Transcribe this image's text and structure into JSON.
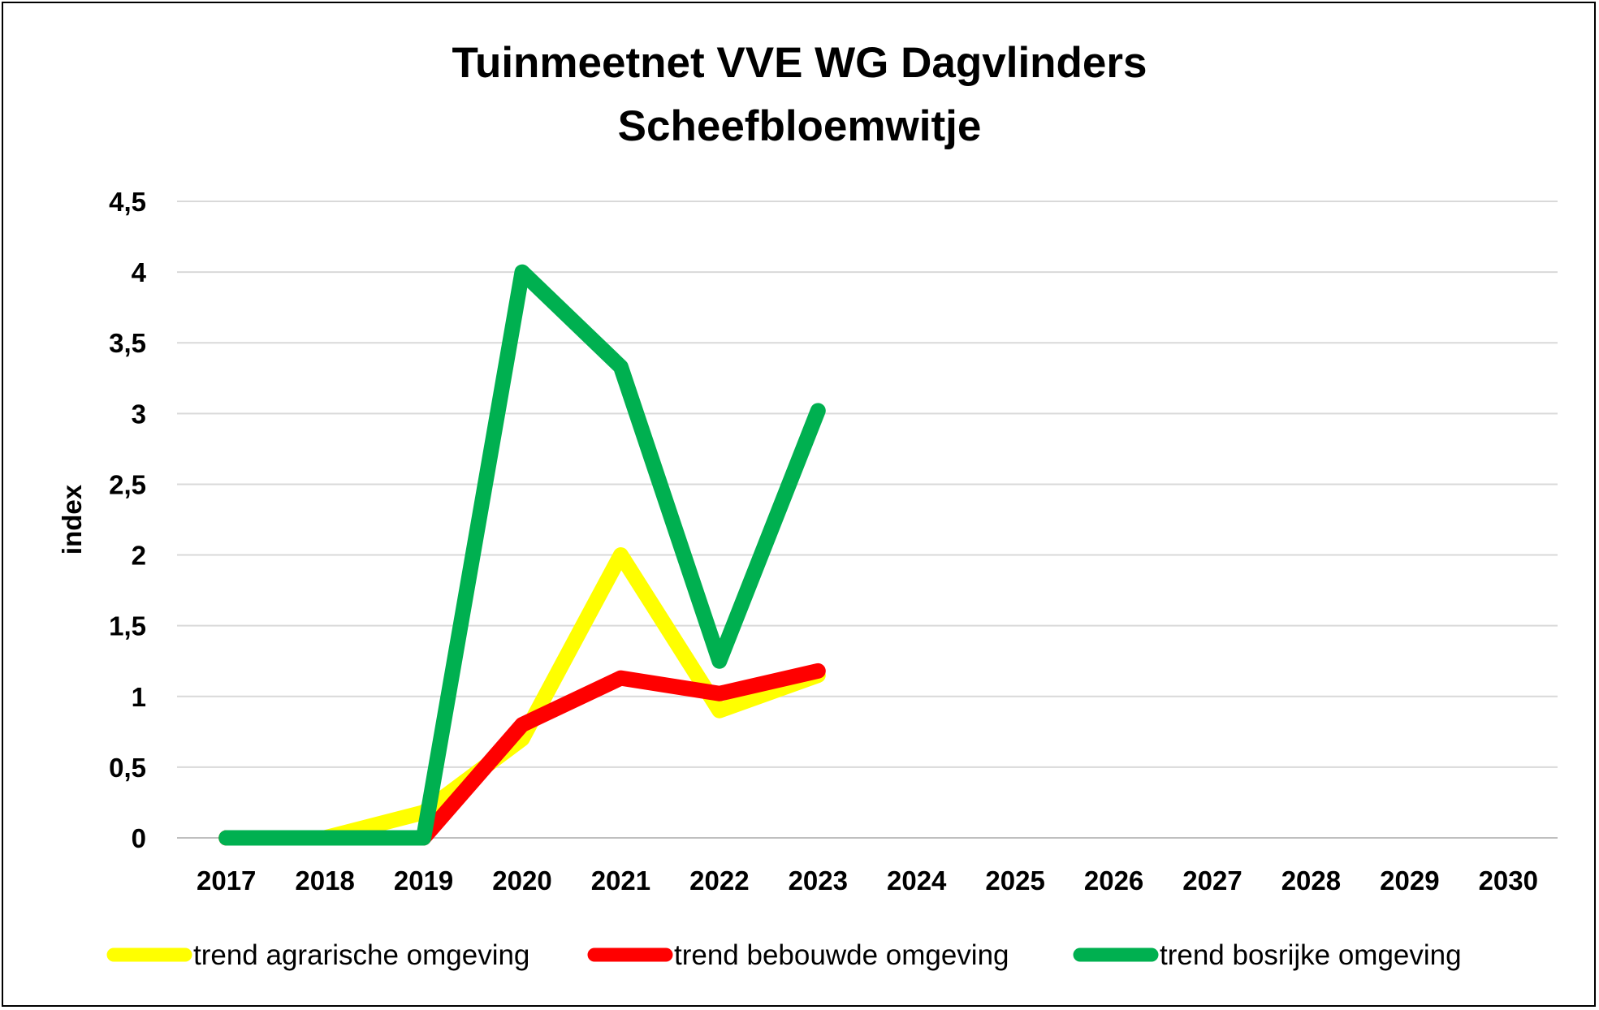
{
  "chart_data": {
    "type": "line",
    "title_lines": [
      "Tuinmeetnet VVE WG Dagvlinders",
      "Scheefbloemwitje"
    ],
    "ylabel": "index",
    "xlabel": "",
    "categories": [
      "2017",
      "2018",
      "2019",
      "2020",
      "2021",
      "2022",
      "2023",
      "2024",
      "2025",
      "2026",
      "2027",
      "2028",
      "2029",
      "2030"
    ],
    "ylim": [
      0,
      4.5
    ],
    "yticks": [
      "0",
      "0,5",
      "1",
      "1,5",
      "2",
      "2,5",
      "3",
      "3,5",
      "4",
      "4,5"
    ],
    "grid": true,
    "legend_position": "bottom",
    "series": [
      {
        "name": "trend agrarische omgeving",
        "color": "#FFFF00",
        "values": [
          0,
          0,
          0.18,
          0.7,
          2.0,
          0.9,
          1.15,
          null,
          null,
          null,
          null,
          null,
          null,
          null
        ]
      },
      {
        "name": "trend bebouwde omgeving",
        "color": "#FF0000",
        "values": [
          0,
          0,
          0,
          0.8,
          1.13,
          1.02,
          1.18,
          null,
          null,
          null,
          null,
          null,
          null,
          null
        ]
      },
      {
        "name": "trend bosrijke omgeving",
        "color": "#00B050",
        "values": [
          0,
          0,
          0,
          4.0,
          3.33,
          1.25,
          3.02,
          null,
          null,
          null,
          null,
          null,
          null,
          null
        ]
      }
    ]
  }
}
